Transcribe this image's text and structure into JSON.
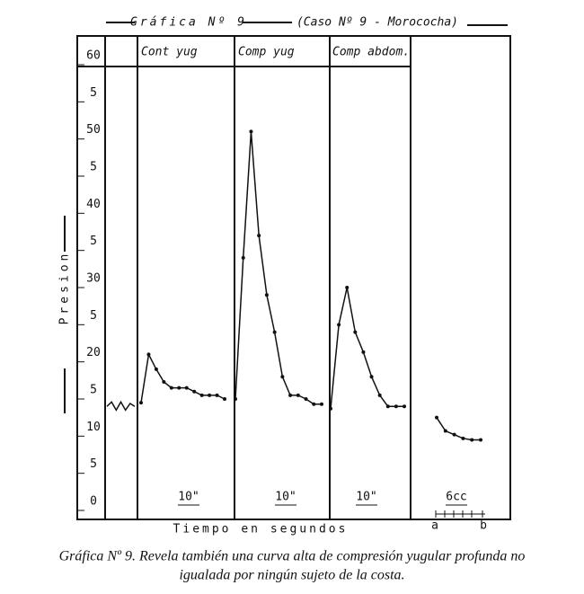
{
  "chart_data": {
    "type": "line",
    "title": "Gráfica Nº 9",
    "subtitle": "(Caso Nº 9 - Morococha)",
    "ylabel": "Presion",
    "xlabel": "Tiempo en segundos",
    "ylim": [
      0,
      60
    ],
    "yticks": [
      0,
      {
        "value": 5,
        "label": "5"
      },
      10,
      {
        "value": 15,
        "label": "5"
      },
      20,
      {
        "value": 25,
        "label": "5"
      },
      30,
      {
        "value": 35,
        "label": "5"
      },
      40,
      {
        "value": 45,
        "label": "5"
      },
      50,
      {
        "value": 55,
        "label": "5"
      },
      60
    ],
    "panels": [
      "Cont yug",
      "Comp yug",
      "Comp abdom."
    ],
    "scale_labels": [
      "10\"",
      "10\"",
      "10\"",
      "6cc"
    ],
    "marker_labels": [
      "a",
      "b"
    ],
    "series": [
      {
        "color": "#111",
        "values": [
          14,
          14.6,
          13.5,
          14.6,
          13.5,
          14.4,
          14
        ]
      },
      {
        "color": "#111",
        "values": [
          14.5,
          21,
          19,
          17.3,
          16.5,
          16.5,
          16.5,
          16,
          15.5,
          15.5,
          15.5,
          15
        ]
      },
      {
        "color": "#111",
        "values": [
          15,
          34,
          51,
          37,
          29,
          24,
          18,
          15.5,
          15.5,
          15,
          14.3,
          14.3
        ]
      },
      {
        "color": "#111",
        "values": [
          13.7,
          25,
          30,
          24,
          21.3,
          18,
          15.5,
          14,
          14,
          14
        ]
      },
      {
        "color": "#111",
        "values": [
          12.5,
          10.7,
          10.2,
          9.7,
          9.5,
          9.5
        ]
      }
    ]
  },
  "caption": [
    "Gráfica Nº 9.  Revela también una curva alta de compresión yugular profunda no",
    "igualada por ningún sujeto de la costa."
  ]
}
